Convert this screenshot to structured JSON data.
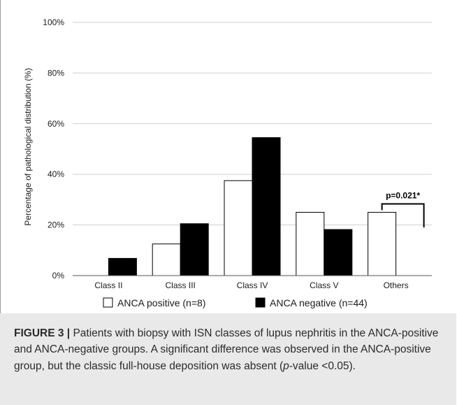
{
  "chart_data": {
    "type": "bar",
    "ylabel": "Percentage of pathological distribution (%)",
    "ylim": [
      0,
      100
    ],
    "yticks": [
      "0%",
      "20%",
      "40%",
      "60%",
      "80%",
      "100%"
    ],
    "ytick_values": [
      0,
      20,
      40,
      60,
      80,
      100
    ],
    "grid": true,
    "categories": [
      "Class II",
      "Class III",
      "Class IV",
      "Class V",
      "Others"
    ],
    "series": [
      {
        "name": "ANCA positive (n=8)",
        "values": [
          0,
          12.5,
          37.5,
          25,
          25
        ],
        "color": "#ffffff"
      },
      {
        "name": "ANCA negative (n=44)",
        "values": [
          6.8,
          20.5,
          54.5,
          18.2,
          0
        ],
        "color": "#000000"
      }
    ],
    "legend_position": "bottom",
    "annotation": {
      "text": "p=0.021*",
      "category": "Others",
      "bracket_from": 25,
      "bracket_to": 18.2
    }
  },
  "caption": {
    "lead": "FIGURE 3 |",
    "text_before": " Patients with biopsy with ISN classes of lupus nephritis in the ANCA-positive and ANCA-negative groups. A significant difference was observed in the ANCA-positive group, but the classic full-house deposition was absent (",
    "italic": "p",
    "text_after": "-value <0.05)."
  }
}
